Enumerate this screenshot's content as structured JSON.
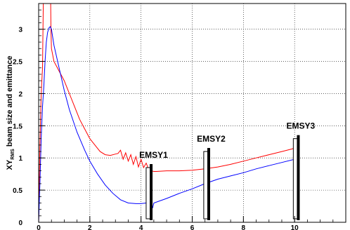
{
  "chart_data": {
    "type": "line",
    "title": "",
    "xlabel": "",
    "ylabel": "XY",
    "ylabel_sub": "RMS",
    "ylabel_rest": " beam size and emittance",
    "xlim": [
      0,
      12
    ],
    "ylim": [
      0,
      3.4
    ],
    "grid": true,
    "xticks": [
      0,
      2,
      4,
      6,
      8,
      10,
      12
    ],
    "xtick_labels": [
      "0",
      "2",
      "4",
      "6",
      "8",
      "10",
      ""
    ],
    "yticks": [
      0,
      0.5,
      1,
      1.5,
      2,
      2.5,
      3
    ],
    "ytick_labels": [
      "0",
      "0.5",
      "1",
      "1.5",
      "2",
      "2.5",
      "3"
    ],
    "series": [
      {
        "color": "#ff0000",
        "x": [
          0.0,
          0.05,
          0.1,
          0.15,
          0.18,
          0.22,
          0.26,
          0.3,
          0.34,
          0.38,
          0.42,
          0.45,
          0.47,
          0.48,
          0.5,
          0.6,
          0.8,
          1.0,
          1.2,
          1.4,
          1.6,
          1.8,
          2.0,
          2.2,
          2.4,
          2.6,
          2.8,
          3.0,
          3.1,
          3.2,
          3.3,
          3.4,
          3.5,
          3.6,
          3.7,
          3.8,
          3.9,
          4.0,
          4.1,
          4.2,
          4.3,
          4.35,
          4.4,
          4.5,
          4.6,
          5.0,
          5.5,
          6.0,
          6.5,
          7.0,
          7.5,
          8.0,
          8.5,
          9.0,
          9.5,
          9.9,
          10.1
        ],
        "y": [
          0.0,
          1.2,
          2.0,
          2.4,
          3.4,
          3.4,
          3.4,
          3.4,
          3.4,
          3.4,
          3.4,
          3.4,
          3.4,
          3.0,
          2.7,
          2.5,
          2.35,
          2.2,
          2.0,
          1.8,
          1.6,
          1.45,
          1.3,
          1.2,
          1.1,
          1.05,
          1.04,
          1.06,
          1.07,
          1.12,
          0.98,
          1.08,
          0.95,
          1.05,
          0.9,
          1.02,
          0.86,
          0.98,
          0.85,
          0.92,
          0.82,
          0.84,
          0.8,
          0.79,
          0.79,
          0.8,
          0.8,
          0.81,
          0.83,
          0.86,
          0.9,
          0.95,
          1.0,
          1.05,
          1.1,
          1.14,
          1.17
        ]
      },
      {
        "color": "#0000ff",
        "x": [
          0.0,
          0.05,
          0.1,
          0.15,
          0.2,
          0.25,
          0.3,
          0.35,
          0.4,
          0.45,
          0.5,
          0.6,
          0.8,
          1.0,
          1.2,
          1.5,
          1.8,
          2.0,
          2.3,
          2.6,
          2.9,
          3.2,
          3.5,
          3.8,
          4.0,
          4.2,
          4.4,
          4.45,
          4.5,
          5.0,
          5.5,
          6.0,
          6.5,
          7.0,
          7.5,
          8.0,
          8.5,
          9.0,
          9.5,
          10.0
        ],
        "y": [
          0.0,
          0.6,
          1.3,
          1.8,
          2.1,
          2.5,
          2.8,
          2.95,
          3.02,
          3.04,
          3.0,
          2.75,
          2.4,
          2.05,
          1.75,
          1.4,
          1.12,
          0.95,
          0.75,
          0.58,
          0.45,
          0.35,
          0.3,
          0.29,
          0.29,
          0.3,
          0.3,
          0.22,
          0.3,
          0.37,
          0.45,
          0.52,
          0.6,
          0.67,
          0.72,
          0.77,
          0.83,
          0.88,
          0.93,
          0.98
        ]
      }
    ],
    "markers": [
      {
        "label": "EMSY1",
        "x_start": 4.2,
        "x_end": 4.45,
        "y_top": 0.85
      },
      {
        "label": "EMSY2",
        "x_start": 6.45,
        "x_end": 6.7,
        "y_top": 1.1
      },
      {
        "label": "EMSY3",
        "x_start": 9.95,
        "x_end": 10.2,
        "y_top": 1.3
      }
    ]
  }
}
